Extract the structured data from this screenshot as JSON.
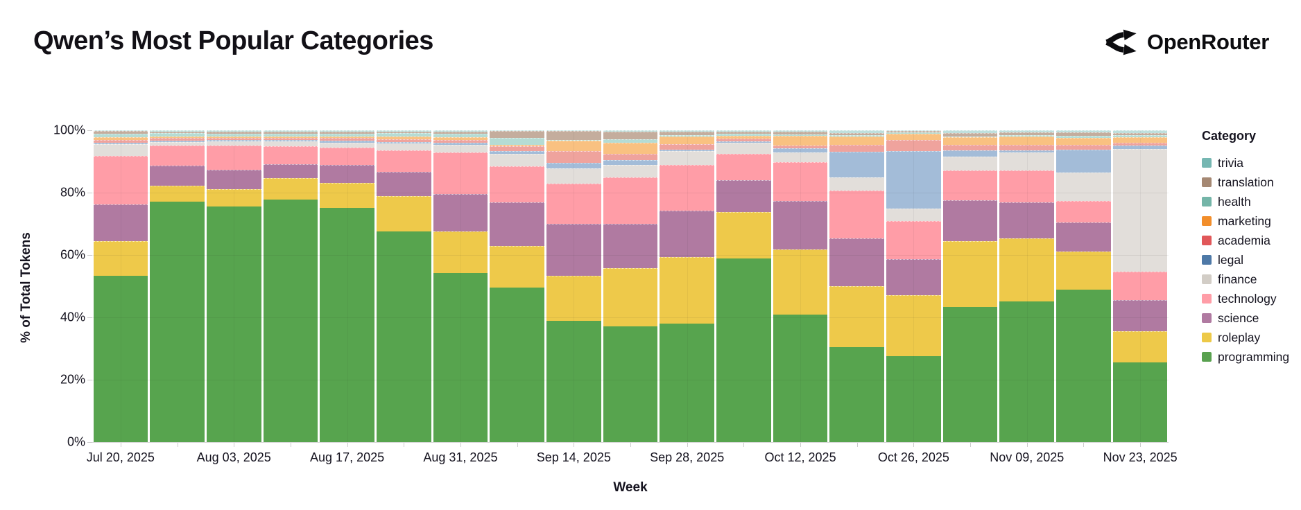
{
  "header": {
    "title": "Qwen’s Most Popular Categories",
    "brand": "OpenRouter"
  },
  "chart_data": {
    "type": "bar",
    "variant": "stacked-100-percent",
    "title": "Qwen’s Most Popular Categories",
    "xlabel": "Week",
    "ylabel": "% of Total Tokens",
    "legend_title": "Category",
    "legend_position": "right",
    "grid": true,
    "ylim": [
      0,
      100
    ],
    "y_ticks": [
      "0%",
      "20%",
      "40%",
      "60%",
      "80%",
      "100%"
    ],
    "categories": [
      "Jul 20, 2025",
      "Jul 27, 2025",
      "Aug 03, 2025",
      "Aug 10, 2025",
      "Aug 17, 2025",
      "Aug 24, 2025",
      "Aug 31, 2025",
      "Sep 07, 2025",
      "Sep 14, 2025",
      "Sep 21, 2025",
      "Sep 28, 2025",
      "Oct 05, 2025",
      "Oct 12, 2025",
      "Oct 19, 2025",
      "Oct 26, 2025",
      "Nov 02, 2025",
      "Nov 09, 2025",
      "Nov 16, 2025",
      "Nov 23, 2025"
    ],
    "x_tick_labels_shown": [
      "Jul 20, 2025",
      "Aug 03, 2025",
      "Aug 17, 2025",
      "Aug 31, 2025",
      "Sep 14, 2025",
      "Sep 28, 2025",
      "Oct 12, 2025",
      "Oct 26, 2025",
      "Nov 09, 2025",
      "Nov 23, 2025"
    ],
    "series": [
      {
        "name": "trivia",
        "color": "#76b7b2",
        "bar_color": "#bfe0dd",
        "values": [
          0.3,
          0.4,
          0.4,
          0.4,
          0.4,
          0.4,
          0.4,
          0.2,
          0.2,
          0.4,
          0.4,
          0.5,
          0.4,
          0.8,
          0.3,
          0.9,
          0.7,
          0.7,
          0.8
        ]
      },
      {
        "name": "translation",
        "color": "#a58873",
        "bar_color": "#c4ad9d",
        "values": [
          0.7,
          0.5,
          0.6,
          0.6,
          0.6,
          0.4,
          0.7,
          2.3,
          3.0,
          2.4,
          1.1,
          0.7,
          1.0,
          0.7,
          0.4,
          1.1,
          0.8,
          1.0,
          0.8
        ]
      },
      {
        "name": "health",
        "color": "#74b5a8",
        "bar_color": "#b5dcd4",
        "values": [
          1.3,
          1.0,
          0.9,
          0.9,
          0.9,
          1.3,
          1.2,
          2.2,
          0.2,
          1.3,
          0.4,
          0.5,
          0.4,
          0.5,
          0.3,
          0.2,
          0.5,
          0.7,
          0.6
        ]
      },
      {
        "name": "marketing",
        "color": "#f28e2b",
        "bar_color": "#f9c181",
        "values": [
          0.7,
          0.6,
          0.6,
          0.5,
          0.6,
          0.7,
          0.7,
          0.4,
          3.3,
          3.5,
          2.6,
          0.9,
          3.0,
          2.6,
          2.2,
          2.4,
          2.6,
          2.2,
          1.7
        ]
      },
      {
        "name": "academia",
        "color": "#e15759",
        "bar_color": "#efa39d",
        "values": [
          1.0,
          0.8,
          0.7,
          0.8,
          0.9,
          0.9,
          1.0,
          1.5,
          3.7,
          1.9,
          1.7,
          1.0,
          1.0,
          2.2,
          3.5,
          1.9,
          1.9,
          1.7,
          1.0
        ]
      },
      {
        "name": "legal",
        "color": "#4e79a7",
        "bar_color": "#a3bcd8",
        "values": [
          0.5,
          0.4,
          0.4,
          0.4,
          0.5,
          0.5,
          0.6,
          0.9,
          1.9,
          1.6,
          0.5,
          0.5,
          1.3,
          8.4,
          18.4,
          1.9,
          0.7,
          7.2,
          1.1
        ]
      },
      {
        "name": "finance",
        "color": "#d2cdc6",
        "bar_color": "#e2deda",
        "values": [
          3.7,
          1.1,
          1.2,
          1.5,
          1.7,
          2.2,
          2.5,
          4.1,
          4.8,
          4.1,
          4.4,
          3.4,
          3.2,
          4.1,
          4.1,
          4.5,
          5.8,
          9.1,
          39.3
        ]
      },
      {
        "name": "technology",
        "color": "#ff9da7",
        "bar_color": "#ff9da7",
        "values": [
          15.6,
          6.5,
          7.8,
          5.7,
          5.5,
          7.0,
          13.4,
          11.5,
          12.8,
          14.8,
          14.7,
          8.5,
          12.4,
          15.5,
          12.1,
          9.5,
          10.1,
          6.9,
          9.1
        ]
      },
      {
        "name": "science",
        "color": "#b07aa1",
        "bar_color": "#b07aa1",
        "values": [
          11.8,
          6.4,
          6.2,
          4.6,
          5.8,
          7.7,
          12.0,
          14.0,
          16.8,
          14.2,
          14.9,
          10.2,
          15.5,
          15.2,
          11.6,
          13.2,
          11.5,
          9.3,
          10.0
        ]
      },
      {
        "name": "roleplay",
        "color": "#edc948",
        "bar_color": "#eec94a",
        "values": [
          11.0,
          5.1,
          5.6,
          6.9,
          8.1,
          11.3,
          13.3,
          13.3,
          14.4,
          18.7,
          21.3,
          14.9,
          20.9,
          19.7,
          19.6,
          21.1,
          20.4,
          12.2,
          10.0
        ]
      },
      {
        "name": "programming",
        "color": "#59a14f",
        "bar_color": "#57a44e",
        "values": [
          53.4,
          77.2,
          75.7,
          77.7,
          75.1,
          67.7,
          54.2,
          49.6,
          38.9,
          37.1,
          38.0,
          58.9,
          40.9,
          30.4,
          27.5,
          43.3,
          45.1,
          48.9,
          25.6
        ]
      }
    ]
  }
}
